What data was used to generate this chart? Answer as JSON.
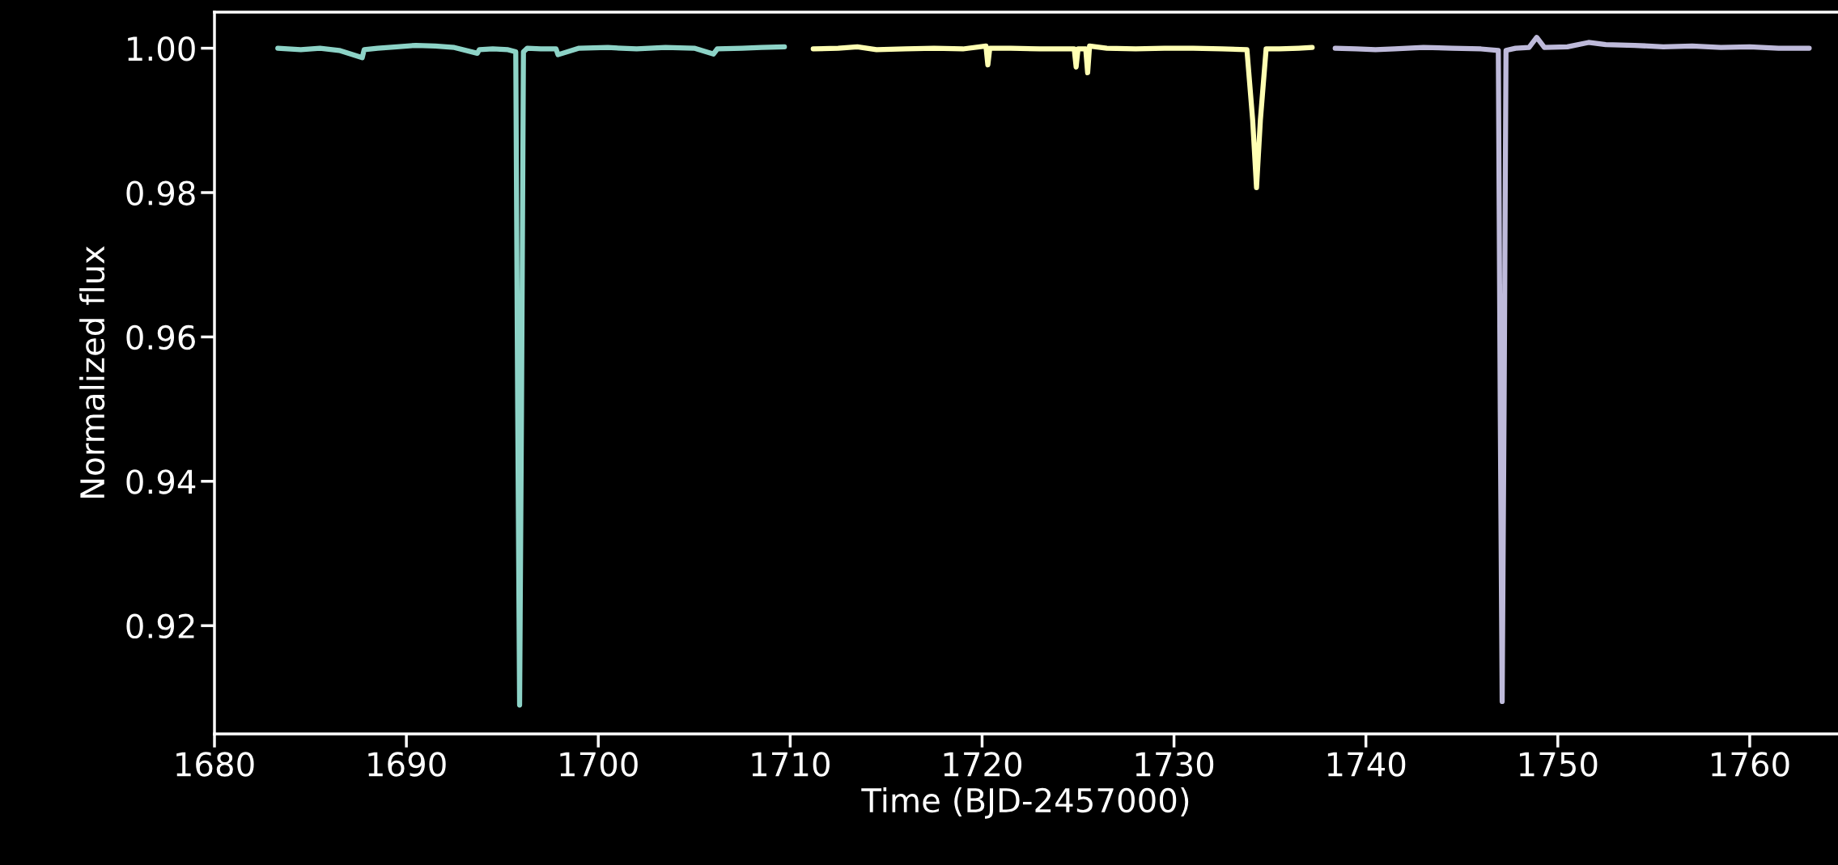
{
  "chart_data": {
    "type": "line",
    "xlabel": "Time (BJD-2457000)",
    "ylabel": "Normalized flux",
    "xlim": [
      1680,
      1764.6
    ],
    "xticks": [
      1680,
      1690,
      1700,
      1710,
      1720,
      1730,
      1740,
      1750,
      1760
    ],
    "ylim": [
      0.905,
      1.005
    ],
    "yticks": [
      0.92,
      0.94,
      0.96,
      0.98,
      {
        "value": 1,
        "label": "1.00"
      }
    ],
    "grid": false,
    "marker": "none",
    "line_style": "solid",
    "series": [
      {
        "color": "#8dd3c7",
        "x": [
          1683.3,
          1684.5,
          1685.5,
          1686.5,
          1687.7,
          1687.8,
          1688.5,
          1689.5,
          1690.5,
          1691.5,
          1692.5,
          1693.7,
          1693.8,
          1694.5,
          1695.3,
          1695.7,
          1695.8,
          1695.9,
          1696.0,
          1696.1,
          1696.3,
          1697.0,
          1697.8,
          1697.9,
          1699.0,
          1700.5,
          1702.0,
          1703.5,
          1705.0,
          1706.0,
          1706.2,
          1707.5,
          1708.5,
          1709.7
        ],
        "values": [
          1.0,
          0.9998,
          1.0,
          0.9997,
          0.9987,
          0.9998,
          1.0,
          1.0002,
          1.0004,
          1.0003,
          1.0001,
          0.9993,
          0.9998,
          0.9999,
          0.9998,
          0.9995,
          0.95,
          0.909,
          0.95,
          0.9995,
          1.0,
          0.9999,
          0.9999,
          0.9991,
          1.0,
          1.0001,
          0.9999,
          1.0001,
          1.0,
          0.9992,
          0.9999,
          1.0,
          1.0001,
          1.0002
        ]
      },
      {
        "color": "#ffffb3",
        "x": [
          1711.2,
          1712.5,
          1713.5,
          1714.5,
          1716.0,
          1717.5,
          1719.0,
          1720.2,
          1720.3,
          1720.4,
          1721.5,
          1723.0,
          1723.9,
          1724.8,
          1724.9,
          1725.0,
          1725.4,
          1725.5,
          1725.6,
          1726.5,
          1728.0,
          1729.5,
          1731.0,
          1732.5,
          1733.8,
          1734.1,
          1734.3,
          1734.5,
          1734.8,
          1735.5,
          1736.5,
          1737.2
        ],
        "values": [
          0.9999,
          1.0,
          1.0002,
          0.9998,
          0.9999,
          1.0,
          0.9999,
          1.0003,
          0.9977,
          1.0,
          1.0,
          0.9999,
          0.9999,
          0.9999,
          0.9974,
          0.9999,
          0.9999,
          0.9966,
          1.0003,
          1.0,
          0.9999,
          1.0,
          1.0,
          0.9999,
          0.9998,
          0.99,
          0.9807,
          0.99,
          0.9999,
          0.9999,
          1.0,
          1.0001
        ]
      },
      {
        "color": "#bebada",
        "x": [
          1738.4,
          1739.5,
          1740.5,
          1741.5,
          1743.0,
          1744.5,
          1746.0,
          1746.9,
          1747.0,
          1747.1,
          1747.2,
          1747.3,
          1747.8,
          1748.5,
          1748.9,
          1749.3,
          1750.5,
          1751.6,
          1752.5,
          1754.0,
          1755.5,
          1757.0,
          1758.5,
          1760.0,
          1761.5,
          1763.1
        ],
        "values": [
          1.0,
          0.9999,
          0.9998,
          0.9999,
          1.0001,
          1.0,
          0.9999,
          0.9997,
          0.95,
          0.9095,
          0.95,
          0.9997,
          1.0,
          1.0001,
          1.0015,
          1.0001,
          1.0002,
          1.0008,
          1.0005,
          1.0004,
          1.0002,
          1.0003,
          1.0001,
          1.0002,
          1.0,
          1.0
        ]
      }
    ]
  }
}
